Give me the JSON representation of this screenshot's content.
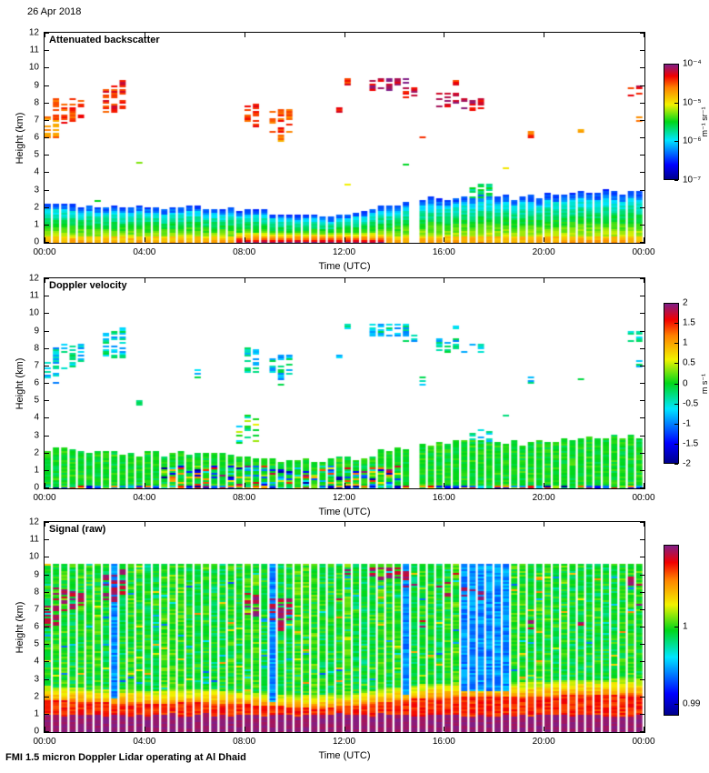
{
  "figure": {
    "date_label": "26 Apr 2018",
    "footer": "FMI 1.5 micron Doppler Lidar operating at Al Dhaid"
  },
  "chart_data": [
    {
      "id": "backscatter",
      "type": "heatmap",
      "title": "Attenuated backscatter",
      "xlabel": "Time (UTC)",
      "ylabel": "Height (km)",
      "x_range_hours": [
        0,
        24
      ],
      "x_tick_hours": [
        0,
        4,
        8,
        12,
        16,
        20,
        24
      ],
      "x_tick_labels": [
        "00:00",
        "04:00",
        "08:00",
        "12:00",
        "16:00",
        "20:00",
        "00:00"
      ],
      "y_range_km": [
        0,
        12
      ],
      "y_tick_km": [
        0,
        1,
        2,
        3,
        4,
        5,
        6,
        7,
        8,
        9,
        10,
        11,
        12
      ],
      "colormap": "jet",
      "colorbar": {
        "unit": "m⁻¹ sr⁻¹",
        "scale": "log10",
        "range": [
          1e-07,
          0.0001
        ],
        "ticks": [
          {
            "label": "10⁻⁴",
            "pos": 0.0
          },
          {
            "label": "10⁻⁵",
            "pos": 0.333
          },
          {
            "label": "10⁻⁶",
            "pos": 0.667
          },
          {
            "label": "10⁻⁷",
            "pos": 1.0
          }
        ]
      },
      "boundary_layer": {
        "top_km_by_hour": [
          2.3,
          2.2,
          2.1,
          2.0,
          1.95,
          2.0,
          2.05,
          2.0,
          1.9,
          1.75,
          1.6,
          1.55,
          1.65,
          1.9,
          2.2,
          2.45,
          2.55,
          2.7,
          2.75,
          2.6,
          2.7,
          2.8,
          2.85,
          2.9,
          2.9
        ],
        "surface_enhanced_hours": [
          7.5,
          13.5
        ],
        "gap_hours": [
          [
            14.78,
            15.08
          ]
        ]
      },
      "cloud_patches": [
        {
          "t0": 0.0,
          "t1": 0.7,
          "h0": 6.0,
          "h1": 7.2,
          "v": 0.8
        },
        {
          "t0": 0.4,
          "t1": 1.5,
          "h0": 6.8,
          "h1": 8.3,
          "v": 0.85
        },
        {
          "t0": 2.2,
          "t1": 3.4,
          "h0": 7.4,
          "h1": 9.0,
          "v": 0.88
        },
        {
          "t0": 2.9,
          "t1": 3.3,
          "h0": 8.9,
          "h1": 9.3,
          "v": 0.92
        },
        {
          "t0": 3.6,
          "t1": 3.85,
          "h0": 4.5,
          "h1": 5.0,
          "v": 0.55
        },
        {
          "t0": 5.55,
          "t1": 5.8,
          "h0": 7.0,
          "h1": 7.7,
          "v": 0.8
        },
        {
          "t0": 6.0,
          "t1": 6.25,
          "h0": 6.3,
          "h1": 6.8,
          "v": 0.55
        },
        {
          "t0": 7.9,
          "t1": 8.6,
          "h0": 6.6,
          "h1": 8.1,
          "v": 0.86
        },
        {
          "t0": 9.0,
          "t1": 10.1,
          "h0": 6.3,
          "h1": 7.6,
          "v": 0.84
        },
        {
          "t0": 9.3,
          "t1": 9.65,
          "h0": 5.8,
          "h1": 6.3,
          "v": 0.78
        },
        {
          "t0": 11.7,
          "t1": 12.0,
          "h0": 7.4,
          "h1": 7.8,
          "v": 0.9
        },
        {
          "t0": 12.1,
          "t1": 12.4,
          "h0": 9.0,
          "h1": 9.4,
          "v": 0.88
        },
        {
          "t0": 13.0,
          "t1": 14.6,
          "h0": 8.7,
          "h1": 9.4,
          "v": 0.95
        },
        {
          "t0": 14.5,
          "t1": 15.0,
          "h0": 8.3,
          "h1": 8.9,
          "v": 0.92
        },
        {
          "t0": 14.9,
          "t1": 15.25,
          "h0": 5.9,
          "h1": 6.4,
          "v": 0.9
        },
        {
          "t0": 15.8,
          "t1": 16.6,
          "h0": 7.7,
          "h1": 8.6,
          "v": 0.95
        },
        {
          "t0": 16.2,
          "t1": 16.55,
          "h0": 9.0,
          "h1": 9.4,
          "v": 0.9
        },
        {
          "t0": 16.7,
          "t1": 17.6,
          "h0": 7.5,
          "h1": 8.3,
          "v": 0.93
        },
        {
          "t0": 16.9,
          "t1": 17.9,
          "h0": 2.5,
          "h1": 3.35,
          "v": 0.45
        },
        {
          "t0": 18.3,
          "t1": 18.55,
          "h0": 4.1,
          "h1": 4.45,
          "v": 0.65
        },
        {
          "t0": 19.4,
          "t1": 19.75,
          "h0": 5.9,
          "h1": 6.35,
          "v": 0.85
        },
        {
          "t0": 21.4,
          "t1": 21.7,
          "h0": 6.1,
          "h1": 6.5,
          "v": 0.75
        },
        {
          "t0": 23.3,
          "t1": 24.0,
          "h0": 8.4,
          "h1": 9.0,
          "v": 0.9
        },
        {
          "t0": 23.55,
          "t1": 23.85,
          "h0": 6.9,
          "h1": 7.4,
          "v": 0.8
        }
      ]
    },
    {
      "id": "velocity",
      "type": "heatmap",
      "title": "Doppler velocity",
      "xlabel": "Time (UTC)",
      "ylabel": "Height (km)",
      "x_range_hours": [
        0,
        24
      ],
      "x_tick_hours": [
        0,
        4,
        8,
        12,
        16,
        20,
        24
      ],
      "x_tick_labels": [
        "00:00",
        "04:00",
        "08:00",
        "12:00",
        "16:00",
        "20:00",
        "00:00"
      ],
      "y_range_km": [
        0,
        12
      ],
      "y_tick_km": [
        0,
        1,
        2,
        3,
        4,
        5,
        6,
        7,
        8,
        9,
        10,
        11,
        12
      ],
      "colormap": "jet",
      "colorbar": {
        "unit": "m s⁻¹",
        "scale": "linear",
        "range": [
          -2,
          2
        ],
        "ticks": [
          {
            "label": "2",
            "pos": 0.0
          },
          {
            "label": "1.5",
            "pos": 0.125
          },
          {
            "label": "1",
            "pos": 0.25
          },
          {
            "label": "0.5",
            "pos": 0.375
          },
          {
            "label": "0",
            "pos": 0.5
          },
          {
            "label": "-0.5",
            "pos": 0.625
          },
          {
            "label": "-1",
            "pos": 0.75
          },
          {
            "label": "-1.5",
            "pos": 0.875
          },
          {
            "label": "-2",
            "pos": 1.0
          }
        ]
      },
      "bl_mean_velocity_ms": 0,
      "cloud_mean_velocity_ms": -0.6,
      "near_surface_noise_hours": [
        4.5,
        14.5
      ],
      "elevated_speckle": {
        "t0": 7.8,
        "t1": 8.8,
        "h0": 2.4,
        "h1": 4.2
      }
    },
    {
      "id": "signal",
      "type": "heatmap",
      "title": "Signal (raw)",
      "xlabel": "Time (UTC)",
      "ylabel": "Height (km)",
      "x_range_hours": [
        0,
        24
      ],
      "x_tick_hours": [
        0,
        4,
        8,
        12,
        16,
        20,
        24
      ],
      "x_tick_labels": [
        "00:00",
        "04:00",
        "08:00",
        "12:00",
        "16:00",
        "20:00",
        "00:00"
      ],
      "y_range_km": [
        0,
        12
      ],
      "y_tick_km": [
        0,
        1,
        2,
        3,
        4,
        5,
        6,
        7,
        8,
        9,
        10,
        11,
        12
      ],
      "colormap": "jet",
      "colorbar": {
        "unit": "",
        "scale": "linear",
        "ticks": [
          {
            "label": "1",
            "pos": 0.48
          },
          {
            "label": "0.99",
            "pos": 0.93
          }
        ]
      },
      "max_data_height_km": 9.6,
      "surface_saturated_band_top_km": 1.0,
      "low_signal_stripe_hours": [
        2.83,
        9.17,
        14.5,
        16.83,
        17.17,
        17.5,
        17.83,
        18.17,
        18.5
      ]
    }
  ]
}
